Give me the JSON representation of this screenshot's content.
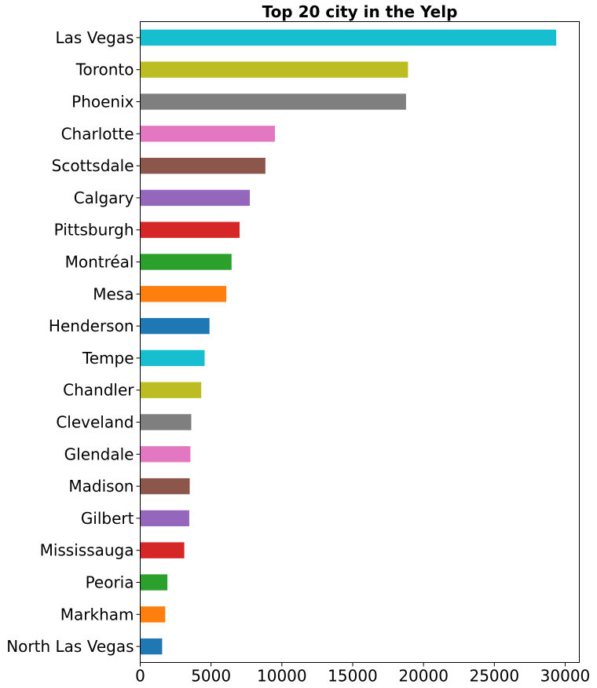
{
  "chart_data": {
    "type": "bar",
    "orientation": "horizontal",
    "title": "Top 20 city in the Yelp",
    "xlabel": "",
    "ylabel": "",
    "xlim": [
      0,
      31000
    ],
    "xticks": [
      0,
      5000,
      10000,
      15000,
      20000,
      25000,
      30000
    ],
    "grid": false,
    "categories": [
      "Las Vegas",
      "Toronto",
      "Phoenix",
      "Charlotte",
      "Scottsdale",
      "Calgary",
      "Pittsburgh",
      "Montréal",
      "Mesa",
      "Henderson",
      "Tempe",
      "Chandler",
      "Cleveland",
      "Glendale",
      "Madison",
      "Gilbert",
      "Mississauga",
      "Peoria",
      "Markham",
      "North Las Vegas"
    ],
    "values": [
      29370,
      18906,
      18766,
      9509,
      8837,
      7736,
      7017,
      6449,
      6080,
      4892,
      4550,
      4309,
      3605,
      3543,
      3494,
      3462,
      3112,
      1919,
      1766,
      1548
    ],
    "colors": [
      "#17becf",
      "#bcbd22",
      "#7f7f7f",
      "#e377c2",
      "#8c564b",
      "#9467bd",
      "#d62728",
      "#2ca02c",
      "#ff7f0e",
      "#1f77b4",
      "#17becf",
      "#bcbd22",
      "#7f7f7f",
      "#e377c2",
      "#8c564b",
      "#9467bd",
      "#d62728",
      "#2ca02c",
      "#ff7f0e",
      "#1f77b4"
    ]
  }
}
